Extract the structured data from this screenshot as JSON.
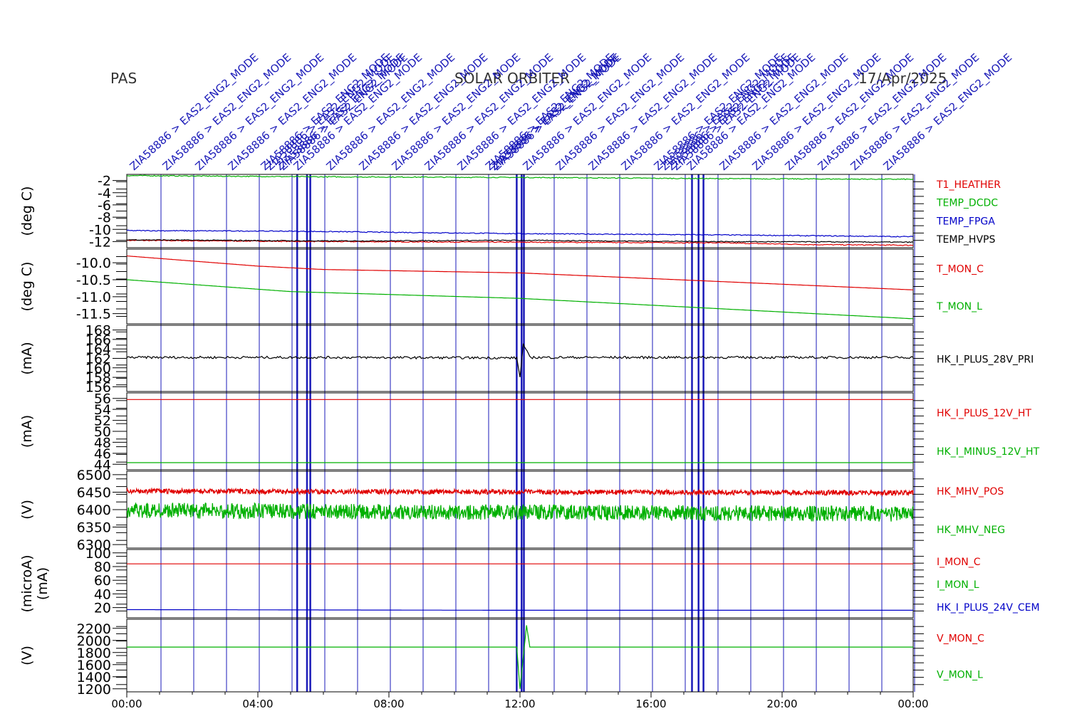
{
  "header": {
    "left": "PAS",
    "center": "SOLAR ORBITER",
    "right": "17/Apr/2025"
  },
  "x_axis": {
    "ticks": [
      "00:00",
      "04:00",
      "08:00",
      "12:00",
      "16:00",
      "20:00",
      "00:00"
    ]
  },
  "colors": {
    "red": "#e00000",
    "green": "#00b000",
    "blue": "#0000c8",
    "black": "#000000",
    "event": "#1a1ab8"
  },
  "events": {
    "label_text": "ZIA58886 > EAS2_ENG2_MODE",
    "times_hours": [
      0,
      1,
      2,
      3,
      4,
      5.0,
      6.0,
      7.0,
      8.0,
      9.0,
      10.0,
      11.0,
      12.0,
      13.0,
      14.0,
      15.0,
      16.0,
      17.0,
      18.0,
      19.0,
      20.0,
      21.0,
      22.0,
      23.0
    ],
    "burst_times_hours": [
      5.2,
      5.5,
      5.6,
      11.9,
      12.05,
      12.12,
      17.25,
      17.45,
      17.6
    ]
  },
  "chart_data": [
    {
      "type": "line",
      "ylabel": "(deg C)",
      "yticks": [
        "-2",
        "-4",
        "-6",
        "-8",
        "-10",
        "-12"
      ],
      "ylim": [
        -13,
        -1
      ],
      "series": [
        {
          "name": "T1_HEATHER",
          "color": "red",
          "values": [
            [
              0,
              -11.8
            ],
            [
              6,
              -12.0
            ],
            [
              12,
              -12.1
            ],
            [
              18,
              -12.2
            ],
            [
              21,
              -12.5
            ],
            [
              24,
              -12.6
            ]
          ]
        },
        {
          "name": "TEMP_DCDC",
          "color": "green",
          "values": [
            [
              0,
              -1.2
            ],
            [
              6,
              -1.4
            ],
            [
              12,
              -1.5
            ],
            [
              18,
              -1.7
            ],
            [
              24,
              -1.8
            ]
          ]
        },
        {
          "name": "TEMP_FPGA",
          "color": "blue",
          "values": [
            [
              0,
              -10.2
            ],
            [
              5,
              -10.3
            ],
            [
              12,
              -10.7
            ],
            [
              18,
              -10.9
            ],
            [
              24,
              -11.2
            ]
          ]
        },
        {
          "name": "TEMP_HVPS",
          "color": "black",
          "values": [
            [
              0,
              -11.7
            ],
            [
              6,
              -11.9
            ],
            [
              12,
              -11.8
            ],
            [
              18,
              -12.0
            ],
            [
              24,
              -12.1
            ]
          ]
        }
      ]
    },
    {
      "type": "line",
      "ylabel": "(deg C)",
      "yticks": [
        "-10.0",
        "-10.5",
        "-11.0",
        "-11.5"
      ],
      "ylim": [
        -11.8,
        -9.6
      ],
      "series": [
        {
          "name": "T_MON_C",
          "color": "red",
          "values": [
            [
              0,
              -9.8
            ],
            [
              4,
              -10.1
            ],
            [
              6,
              -10.2
            ],
            [
              12,
              -10.3
            ],
            [
              18,
              -10.55
            ],
            [
              24,
              -10.8
            ]
          ]
        },
        {
          "name": "T_MON_L",
          "color": "green",
          "values": [
            [
              0,
              -10.5
            ],
            [
              5,
              -10.85
            ],
            [
              12,
              -11.05
            ],
            [
              18,
              -11.35
            ],
            [
              24,
              -11.65
            ]
          ]
        }
      ]
    },
    {
      "type": "line",
      "ylabel": "(mA)",
      "yticks": [
        "168",
        "166",
        "164",
        "162",
        "160",
        "158",
        "156"
      ],
      "ylim": [
        155,
        169
      ],
      "series": [
        {
          "name": "HK_I_PLUS_28V_PRI",
          "color": "black",
          "values": [
            [
              0,
              162.2
            ],
            [
              6,
              162.2
            ],
            [
              11.9,
              162.1
            ],
            [
              12.0,
              158.0
            ],
            [
              12.1,
              165.0
            ],
            [
              12.3,
              162.2
            ],
            [
              24,
              162.2
            ]
          ]
        }
      ]
    },
    {
      "type": "line",
      "ylabel": "(mA)",
      "yticks": [
        "56",
        "54",
        "52",
        "50",
        "48",
        "46",
        "44"
      ],
      "ylim": [
        43,
        57
      ],
      "series": [
        {
          "name": "HK_I_PLUS_12V_HT",
          "color": "red",
          "values": [
            [
              0,
              55.8
            ],
            [
              12,
              55.8
            ],
            [
              24,
              55.8
            ]
          ]
        },
        {
          "name": "HK_I_MINUS_12V_HT",
          "color": "green",
          "values": [
            [
              0,
              44.3
            ],
            [
              12,
              44.3
            ],
            [
              24,
              44.3
            ]
          ]
        }
      ]
    },
    {
      "type": "line",
      "ylabel": "(V)",
      "yticks": [
        "6500",
        "6450",
        "6400",
        "6350",
        "6300"
      ],
      "ylim": [
        6290,
        6510
      ],
      "series": [
        {
          "name": "HK_MHV_POS",
          "color": "red",
          "values": [
            [
              0,
              6460
            ],
            [
              24,
              6455
            ]
          ]
        },
        {
          "name": "HK_MHV_NEG",
          "color": "green",
          "values": [
            [
              0,
              6420
            ],
            [
              24,
              6410
            ]
          ]
        }
      ]
    },
    {
      "type": "line",
      "ylabel": "(microA)",
      "ylabel2": "(mA)",
      "yticks": [
        "100",
        "80",
        "60",
        "40",
        "20"
      ],
      "ylim": [
        5,
        105
      ],
      "series": [
        {
          "name": "I_MON_C",
          "color": "red",
          "values": [
            [
              0,
              84
            ],
            [
              12,
              84
            ],
            [
              18,
              84
            ],
            [
              24,
              84
            ]
          ]
        },
        {
          "name": "I_MON_L",
          "color": "green",
          "values": []
        },
        {
          "name": "HK_I_PLUS_24V_CEM",
          "color": "blue",
          "values": [
            [
              0,
              17
            ],
            [
              12,
              16
            ],
            [
              24,
              16
            ]
          ]
        }
      ]
    },
    {
      "type": "line",
      "ylabel": "(V)",
      "yticks": [
        "2200",
        "2000",
        "1800",
        "1600",
        "1400",
        "1200"
      ],
      "ylim": [
        1150,
        2350
      ],
      "series": [
        {
          "name": "V_MON_C",
          "color": "red",
          "values": []
        },
        {
          "name": "V_MON_L",
          "color": "green",
          "values": [
            [
              0,
              1890
            ],
            [
              11.9,
              1890
            ],
            [
              12.0,
              1200
            ],
            [
              12.2,
              2250
            ],
            [
              12.3,
              1890
            ],
            [
              24,
              1890
            ]
          ]
        }
      ]
    }
  ]
}
